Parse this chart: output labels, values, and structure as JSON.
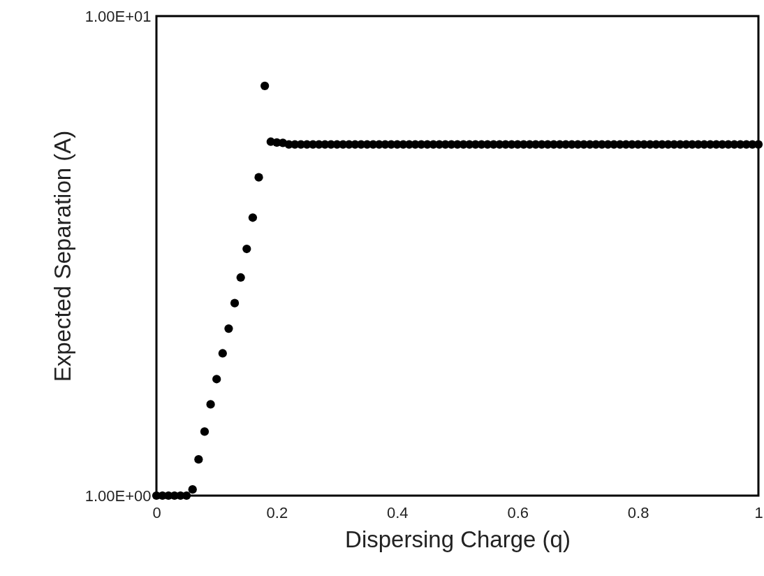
{
  "chart_data": {
    "type": "scatter",
    "xlabel": "Dispersing Charge (q)",
    "ylabel": "Expected Separation (A)",
    "x": [
      0,
      0.01,
      0.02,
      0.03,
      0.04,
      0.05,
      0.06,
      0.07,
      0.08,
      0.09,
      0.1,
      0.11,
      0.12,
      0.13,
      0.14,
      0.15,
      0.16,
      0.17,
      0.18,
      0.19,
      0.2,
      0.21,
      0.22,
      0.23,
      0.24,
      0.25,
      0.26,
      0.27,
      0.28,
      0.29,
      0.3,
      0.31,
      0.32,
      0.33,
      0.34,
      0.35,
      0.36,
      0.37,
      0.38,
      0.39,
      0.4,
      0.41,
      0.42,
      0.43,
      0.44,
      0.45,
      0.46,
      0.47,
      0.48,
      0.49,
      0.5,
      0.51,
      0.52,
      0.53,
      0.54,
      0.55,
      0.56,
      0.57,
      0.58,
      0.59,
      0.6,
      0.61,
      0.62,
      0.63,
      0.64,
      0.65,
      0.66,
      0.67,
      0.68,
      0.69,
      0.7,
      0.71,
      0.72,
      0.73,
      0.74,
      0.75,
      0.76,
      0.77,
      0.78,
      0.79,
      0.8,
      0.81,
      0.82,
      0.83,
      0.84,
      0.85,
      0.86,
      0.87,
      0.88,
      0.89,
      0.9,
      0.91,
      0.92,
      0.93,
      0.94,
      0.95,
      0.96,
      0.97,
      0.98,
      0.99,
      1
    ],
    "series": [
      {
        "color": "#000000",
        "values": [
          1,
          1,
          1,
          1,
          1,
          1,
          1.03,
          1.19,
          1.36,
          1.55,
          1.75,
          1.98,
          2.23,
          2.52,
          2.85,
          3.27,
          3.8,
          4.61,
          7.15,
          5.47,
          5.45,
          5.44,
          5.4,
          5.4,
          5.4,
          5.4,
          5.4,
          5.4,
          5.4,
          5.4,
          5.4,
          5.4,
          5.4,
          5.4,
          5.4,
          5.4,
          5.4,
          5.4,
          5.4,
          5.4,
          5.4,
          5.4,
          5.4,
          5.4,
          5.4,
          5.4,
          5.4,
          5.4,
          5.4,
          5.4,
          5.4,
          5.4,
          5.4,
          5.4,
          5.4,
          5.4,
          5.4,
          5.4,
          5.4,
          5.4,
          5.4,
          5.4,
          5.4,
          5.4,
          5.4,
          5.4,
          5.4,
          5.4,
          5.4,
          5.4,
          5.4,
          5.4,
          5.4,
          5.4,
          5.4,
          5.4,
          5.4,
          5.4,
          5.4,
          5.4,
          5.4,
          5.4,
          5.4,
          5.4,
          5.4,
          5.4,
          5.4,
          5.4,
          5.4,
          5.4,
          5.4,
          5.4,
          5.4,
          5.4,
          5.4,
          5.4,
          5.4,
          5.4,
          5.4,
          5.4,
          5.4
        ]
      }
    ],
    "xlim": [
      0,
      1
    ],
    "xticks": [
      0,
      0.2,
      0.4,
      0.6,
      0.8,
      1
    ],
    "ylim": [
      1,
      10
    ],
    "yticks": [
      {
        "value": 1,
        "label": "1.00E+00"
      },
      {
        "value": 10,
        "label": "1.00E+01"
      }
    ],
    "log": "y",
    "grid": false,
    "legend": false,
    "marker": "circle"
  }
}
